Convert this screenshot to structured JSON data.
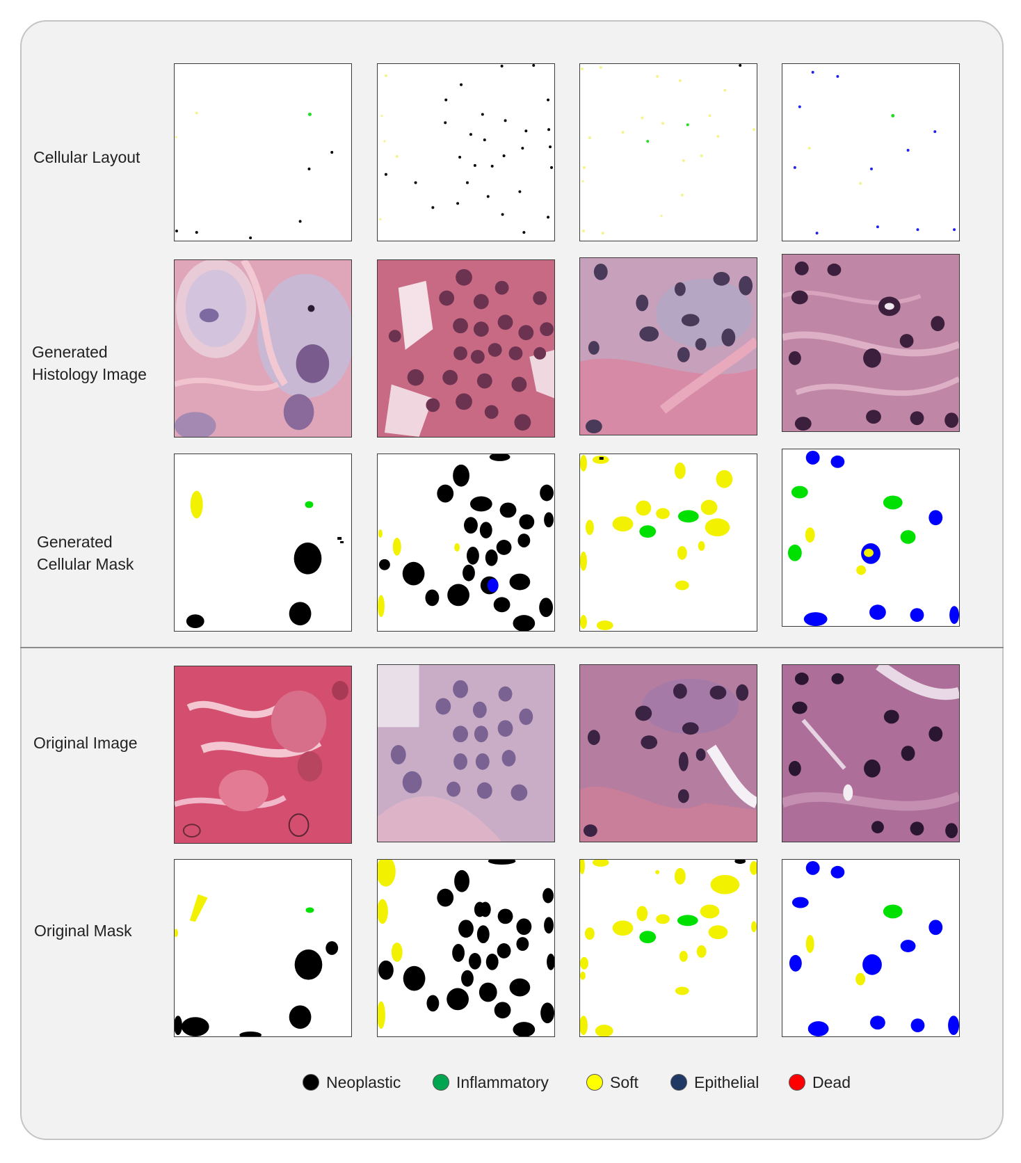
{
  "rows": [
    {
      "label": "Cellular Layout"
    },
    {
      "label": "Generated\nHistology Image"
    },
    {
      "label": "Generated\nCellular Mask"
    },
    {
      "label": "Original Image"
    },
    {
      "label": "Original Mask"
    }
  ],
  "legend": [
    {
      "label": "Neoplastic",
      "color": "#000000"
    },
    {
      "label": "Inflammatory",
      "color": "#00a550"
    },
    {
      "label": "Soft",
      "color": "#ffff00"
    },
    {
      "label": "Epithelial",
      "color": "#1f3864"
    },
    {
      "label": "Dead",
      "color": "#ff0000"
    }
  ],
  "mask_colors": {
    "neoplastic": "#000000",
    "inflammatory": "#00e000",
    "soft": "#f2f200",
    "epithelial": "#0000ff"
  }
}
